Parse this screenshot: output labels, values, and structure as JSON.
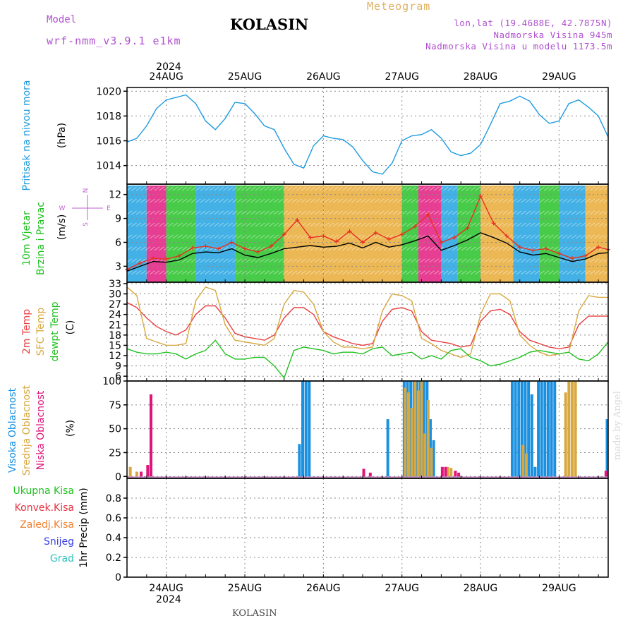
{
  "header": {
    "model_label": "Model",
    "model_name": "wrf-nmm_v3.9.1 e1km",
    "station": "KOLASIN",
    "product": "Meteogram",
    "coords": "lon,lat (19.4688E, 42.7875N)",
    "elevation": "Nadmorska Visina 945m",
    "model_elevation": "Nadmorska Visina u modelu 1173.5m",
    "year": "2024",
    "footer_station": "KOLASIN",
    "watermark": "made by Angel"
  },
  "time_axis": {
    "labels": [
      "24AUG",
      "25AUG",
      "26AUG",
      "27AUG",
      "28AUG",
      "29AUG"
    ],
    "label_hours": [
      12,
      36,
      60,
      84,
      108,
      132
    ],
    "range_hours": [
      0,
      147
    ]
  },
  "chart_data": [
    {
      "type": "line",
      "panel": "pressure",
      "ylabel": "Pritisak na nivou mora",
      "unit": "(hPa)",
      "ylim": [
        1012.5,
        1020.3
      ],
      "yticks": [
        1014,
        1016,
        1018,
        1020
      ],
      "x_hours": [
        0,
        3,
        6,
        9,
        12,
        15,
        18,
        21,
        24,
        27,
        30,
        33,
        36,
        39,
        42,
        45,
        48,
        51,
        54,
        57,
        60,
        63,
        66,
        69,
        72,
        75,
        78,
        81,
        84,
        87,
        90,
        93,
        96,
        99,
        102,
        105,
        108,
        111,
        114,
        117,
        120,
        123,
        126,
        129,
        132,
        135,
        138,
        141,
        144,
        147
      ],
      "series": [
        {
          "color": "#1e9be0",
          "values": [
            1015.9,
            1016.2,
            1017.2,
            1018.6,
            1019.3,
            1019.5,
            1019.7,
            1019.0,
            1017.6,
            1016.9,
            1017.8,
            1019.1,
            1019.0,
            1018.2,
            1017.2,
            1016.9,
            1015.4,
            1014.1,
            1013.8,
            1015.6,
            1016.4,
            1016.2,
            1016.1,
            1015.5,
            1014.4,
            1013.5,
            1013.3,
            1014.2,
            1016.0,
            1016.4,
            1016.5,
            1016.9,
            1016.2,
            1015.1,
            1014.8,
            1015.0,
            1015.7,
            1017.3,
            1019.0,
            1019.2,
            1019.6,
            1019.2,
            1018.1,
            1017.4,
            1017.6,
            1019.0,
            1019.3,
            1018.7,
            1018.0,
            1016.3
          ]
        }
      ]
    },
    {
      "type": "line",
      "panel": "wind",
      "ylabel": [
        "10m Vjetar",
        "Brzina i Pravac"
      ],
      "unit": "(m/s)",
      "ylim": [
        1,
        13.3
      ],
      "yticks": [
        3,
        6,
        9,
        12
      ],
      "compass": {
        "n": "N",
        "s": "S",
        "w": "W",
        "e": "E"
      },
      "band_colors": [
        "#1aa0e0",
        "#20c020",
        "#e8a830",
        "#e0147a"
      ],
      "x_hours": [
        0,
        4,
        8,
        12,
        16,
        20,
        24,
        28,
        32,
        36,
        40,
        44,
        48,
        52,
        56,
        60,
        64,
        68,
        72,
        76,
        80,
        84,
        88,
        92,
        96,
        100,
        104,
        108,
        112,
        116,
        120,
        124,
        128,
        132,
        136,
        140,
        144,
        147
      ],
      "series": [
        {
          "name": "wind",
          "color": "#000000",
          "values": [
            2.4,
            3.0,
            3.6,
            3.5,
            3.8,
            4.6,
            4.8,
            4.7,
            5.2,
            4.4,
            4.1,
            4.6,
            5.2,
            5.4,
            5.6,
            5.4,
            5.5,
            5.9,
            5.3,
            6.0,
            5.4,
            5.7,
            6.2,
            6.8,
            5.0,
            5.6,
            6.3,
            7.2,
            6.6,
            5.9,
            4.8,
            4.4,
            4.6,
            4.1,
            3.6,
            3.9,
            4.6,
            4.7
          ]
        },
        {
          "name": "gust",
          "color": "#e83020",
          "values": [
            2.6,
            3.4,
            4.0,
            3.9,
            4.3,
            5.3,
            5.5,
            5.2,
            6.0,
            5.2,
            4.8,
            5.5,
            7.0,
            8.8,
            6.6,
            6.8,
            6.1,
            7.4,
            6.0,
            7.2,
            6.4,
            7.0,
            8.0,
            9.5,
            6.0,
            6.6,
            7.8,
            11.8,
            8.4,
            6.8,
            5.4,
            5.0,
            5.2,
            4.6,
            4.0,
            4.3,
            5.4,
            5.1
          ]
        }
      ]
    },
    {
      "type": "line",
      "panel": "temperature",
      "ylabel": [
        "2m Temp",
        "SFC Temp",
        "dewpt Temp"
      ],
      "unit": "(C)",
      "ylim": [
        4.6,
        33.4
      ],
      "yticks": [
        6,
        9,
        12,
        15,
        18,
        21,
        24,
        27,
        30,
        33
      ],
      "x_hours": [
        0,
        3,
        6,
        9,
        12,
        15,
        18,
        21,
        24,
        27,
        30,
        33,
        36,
        39,
        42,
        45,
        48,
        51,
        54,
        57,
        60,
        63,
        66,
        69,
        72,
        75,
        78,
        81,
        84,
        87,
        90,
        93,
        96,
        99,
        102,
        105,
        108,
        111,
        114,
        117,
        120,
        123,
        126,
        129,
        132,
        135,
        138,
        141,
        144,
        147
      ],
      "series": [
        {
          "name": "2m Temp",
          "color": "#e84040",
          "values": [
            27.5,
            26,
            23,
            20.5,
            19,
            18,
            19.5,
            24,
            26.5,
            26.5,
            23,
            18.5,
            17.5,
            17,
            16.5,
            18,
            23,
            26,
            26,
            24,
            19,
            17.5,
            16.5,
            15.5,
            15,
            15.5,
            22,
            25.5,
            26,
            25,
            19,
            16.5,
            16,
            15.5,
            14.5,
            15,
            22,
            25,
            25.5,
            24,
            19,
            16.5,
            15.5,
            14.5,
            14,
            14.5,
            21,
            23.5,
            23.5,
            23.5
          ]
        },
        {
          "name": "SFC Temp",
          "color": "#d8a840",
          "values": [
            32,
            29.5,
            17,
            16,
            15,
            15,
            15.5,
            28,
            32,
            31,
            21,
            16.5,
            16,
            15.5,
            15,
            17,
            27,
            31,
            30.5,
            27,
            19,
            16,
            14.5,
            14.5,
            14,
            14.5,
            25,
            30,
            29.5,
            28,
            17,
            15.5,
            13.5,
            12.5,
            11.5,
            12.5,
            24,
            30,
            30,
            28,
            18,
            15,
            13,
            12,
            12.5,
            13,
            25,
            29.5,
            29,
            29
          ]
        },
        {
          "name": "dewpt Temp",
          "color": "#20c020",
          "values": [
            14,
            13,
            12.5,
            12.5,
            13,
            12.5,
            11,
            12.5,
            13.5,
            16.5,
            12.5,
            11,
            11,
            11.5,
            11.5,
            9,
            5.5,
            13.5,
            14.5,
            14,
            13.5,
            12.5,
            13,
            13,
            12.5,
            14,
            14.5,
            12,
            12.5,
            13,
            11,
            12,
            11,
            13.5,
            14,
            11.5,
            10.5,
            9,
            9.5,
            10.5,
            11.5,
            13,
            13.5,
            13,
            12.5,
            13,
            11,
            10.5,
            12.5,
            16
          ]
        }
      ]
    },
    {
      "type": "bar",
      "panel": "cloud",
      "ylabel": [
        "Visoka Oblacnost",
        "Srednja Oblacnost",
        "Niska Oblacnost"
      ],
      "unit": "(%)",
      "ylim": [
        -2,
        100
      ],
      "yticks": [
        0,
        25,
        50,
        75,
        100
      ],
      "series": [
        {
          "name": "Visoka Oblacnost",
          "color": "#1a90e0",
          "x_hours": [
            53,
            54,
            55,
            56,
            80,
            85,
            86,
            87,
            88,
            89,
            90,
            91,
            92,
            93,
            94,
            118,
            119,
            120,
            121,
            122,
            123,
            124,
            125,
            126,
            127,
            128,
            129,
            130,
            131,
            147
          ],
          "values": [
            34,
            100,
            100,
            100,
            60,
            100,
            100,
            100,
            100,
            100,
            100,
            100,
            100,
            60,
            38,
            100,
            100,
            100,
            100,
            100,
            100,
            86,
            10,
            100,
            100,
            100,
            100,
            100,
            100,
            60
          ]
        },
        {
          "name": "Srednja Oblacnost",
          "color": "#d8a840",
          "x_hours": [
            1,
            3,
            85,
            86,
            87,
            88,
            89,
            90,
            91,
            92,
            93,
            98,
            99,
            121,
            122,
            134,
            135,
            136,
            137
          ],
          "values": [
            10,
            5,
            93,
            88,
            72,
            100,
            90,
            100,
            45,
            80,
            30,
            10,
            9,
            33,
            24,
            88,
            100,
            100,
            100
          ]
        },
        {
          "name": "Niska Oblacnost",
          "color": "#e0147a",
          "x_hours": [
            4,
            6,
            7,
            72,
            74,
            96,
            97,
            100,
            101,
            146
          ],
          "values": [
            5,
            12,
            86,
            8,
            4,
            10,
            10,
            6,
            4,
            6
          ]
        }
      ]
    },
    {
      "type": "bar",
      "panel": "precipitation",
      "ylabel": "1hr Precip",
      "unit": "(mm)",
      "ylim": [
        0,
        1.0
      ],
      "yticks": [
        0,
        0.2,
        0.4,
        0.6,
        0.8
      ],
      "ytick_labels": [
        "0",
        "0.2",
        "0.4",
        "0.6",
        "0.8"
      ],
      "legend": [
        {
          "label": "Ukupna Kisa",
          "color": "#20c020"
        },
        {
          "label": "Konvek.Kisa",
          "color": "#e83040"
        },
        {
          "label": "Zaledj.Kisa",
          "color": "#f08030"
        },
        {
          "label": "Snijeg",
          "color": "#3840e0"
        },
        {
          "label": "Grad",
          "color": "#30c0c0"
        }
      ],
      "series": []
    }
  ]
}
